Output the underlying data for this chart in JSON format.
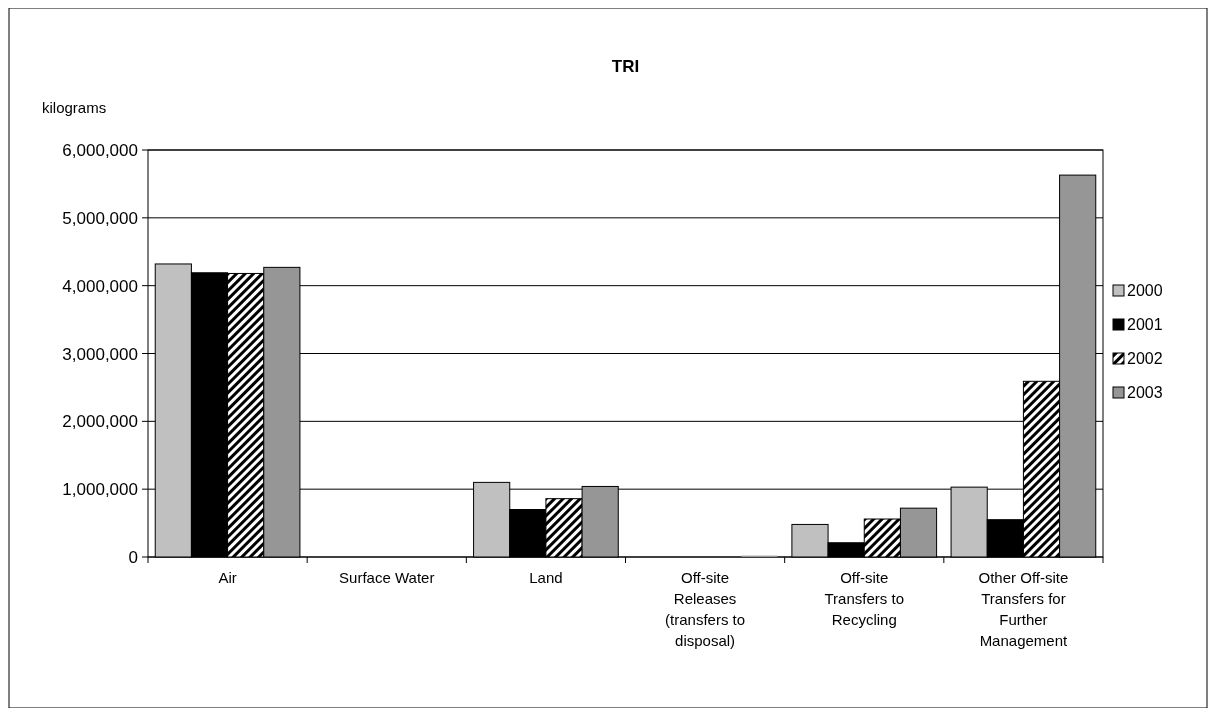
{
  "chart_data": {
    "type": "bar",
    "title": "TRI",
    "ylabel": "kilograms",
    "categories": [
      "Air",
      "Surface Water",
      "Land",
      "Off-site Releases (transfers to disposal)",
      "Off-site Transfers to Recycling",
      "Other Off-site Transfers for Further Management"
    ],
    "series": [
      {
        "name": "2000",
        "color": "#c0c0c0",
        "values": [
          4320000,
          0,
          1100000,
          0,
          480000,
          1030000
        ]
      },
      {
        "name": "2001",
        "color": "#000000",
        "values": [
          4190000,
          0,
          700000,
          0,
          210000,
          550000
        ]
      },
      {
        "name": "2002",
        "color": "#000000",
        "values": [
          4180000,
          0,
          860000,
          0,
          560000,
          2590000
        ]
      },
      {
        "name": "2003",
        "color": "#969696",
        "values": [
          4270000,
          0,
          1040000,
          20000,
          720000,
          5630000
        ]
      }
    ],
    "ylim": [
      0,
      6000000
    ],
    "yticks": [
      0,
      {
        "value": 1000000,
        "label": "1,000,000"
      },
      {
        "value": 2000000,
        "label": "2,000,000"
      },
      {
        "value": 3000000,
        "label": "3,000,000"
      },
      {
        "value": 4000000,
        "label": "4,000,000"
      },
      {
        "value": 5000000,
        "label": "5,000,000"
      },
      {
        "value": 6000000,
        "label": "6,000,000"
      }
    ],
    "grid": "y",
    "legend": "right"
  }
}
